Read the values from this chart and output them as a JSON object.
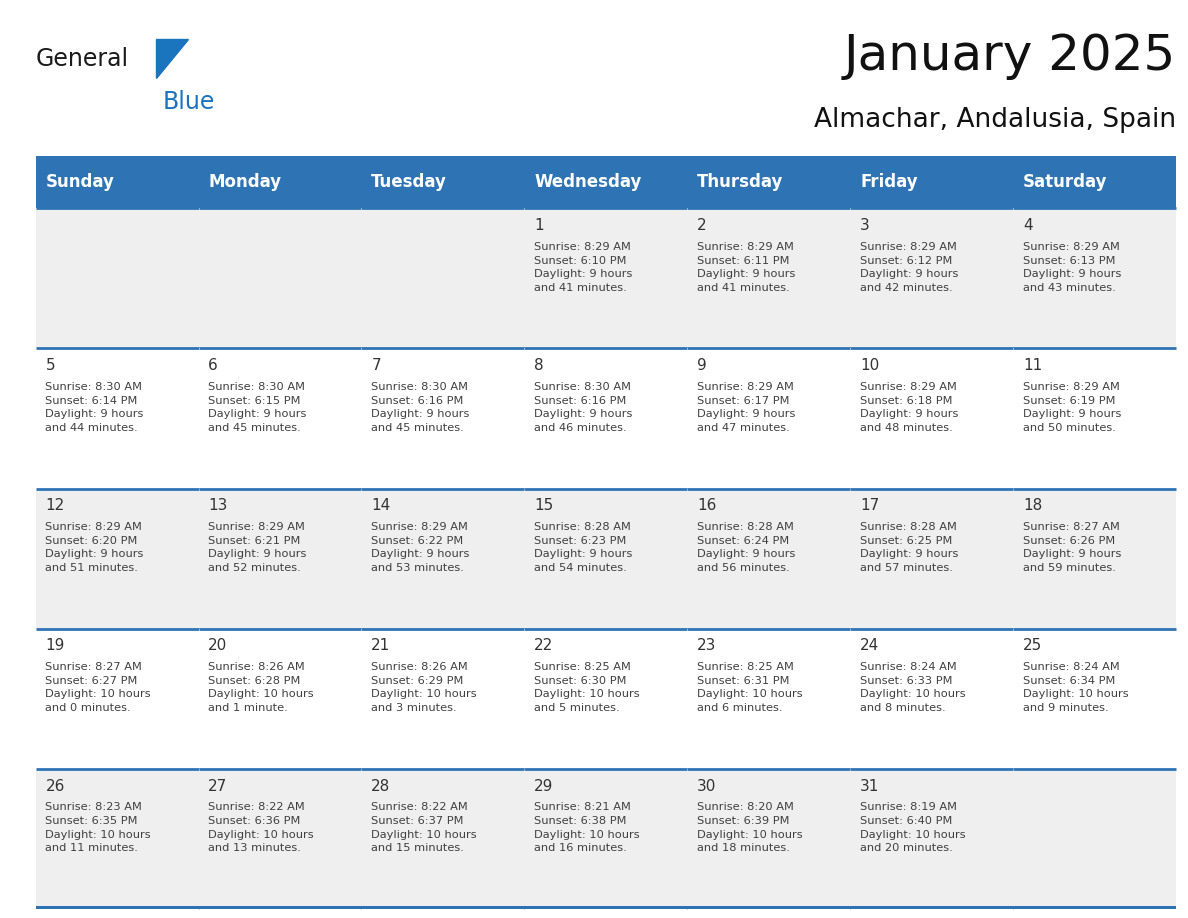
{
  "title": "January 2025",
  "subtitle": "Almachar, Andalusia, Spain",
  "days_of_week": [
    "Sunday",
    "Monday",
    "Tuesday",
    "Wednesday",
    "Thursday",
    "Friday",
    "Saturday"
  ],
  "header_bg": "#2E74B5",
  "header_text_color": "#FFFFFF",
  "cell_bg_odd": "#EFEFEF",
  "cell_bg_even": "#FFFFFF",
  "border_color": "#2E74B5",
  "separator_color": "#AAAAAA",
  "text_color": "#404040",
  "day_num_color": "#333333",
  "calendar_data": [
    [
      {
        "day": "",
        "info": ""
      },
      {
        "day": "",
        "info": ""
      },
      {
        "day": "",
        "info": ""
      },
      {
        "day": "1",
        "info": "Sunrise: 8:29 AM\nSunset: 6:10 PM\nDaylight: 9 hours\nand 41 minutes."
      },
      {
        "day": "2",
        "info": "Sunrise: 8:29 AM\nSunset: 6:11 PM\nDaylight: 9 hours\nand 41 minutes."
      },
      {
        "day": "3",
        "info": "Sunrise: 8:29 AM\nSunset: 6:12 PM\nDaylight: 9 hours\nand 42 minutes."
      },
      {
        "day": "4",
        "info": "Sunrise: 8:29 AM\nSunset: 6:13 PM\nDaylight: 9 hours\nand 43 minutes."
      }
    ],
    [
      {
        "day": "5",
        "info": "Sunrise: 8:30 AM\nSunset: 6:14 PM\nDaylight: 9 hours\nand 44 minutes."
      },
      {
        "day": "6",
        "info": "Sunrise: 8:30 AM\nSunset: 6:15 PM\nDaylight: 9 hours\nand 45 minutes."
      },
      {
        "day": "7",
        "info": "Sunrise: 8:30 AM\nSunset: 6:16 PM\nDaylight: 9 hours\nand 45 minutes."
      },
      {
        "day": "8",
        "info": "Sunrise: 8:30 AM\nSunset: 6:16 PM\nDaylight: 9 hours\nand 46 minutes."
      },
      {
        "day": "9",
        "info": "Sunrise: 8:29 AM\nSunset: 6:17 PM\nDaylight: 9 hours\nand 47 minutes."
      },
      {
        "day": "10",
        "info": "Sunrise: 8:29 AM\nSunset: 6:18 PM\nDaylight: 9 hours\nand 48 minutes."
      },
      {
        "day": "11",
        "info": "Sunrise: 8:29 AM\nSunset: 6:19 PM\nDaylight: 9 hours\nand 50 minutes."
      }
    ],
    [
      {
        "day": "12",
        "info": "Sunrise: 8:29 AM\nSunset: 6:20 PM\nDaylight: 9 hours\nand 51 minutes."
      },
      {
        "day": "13",
        "info": "Sunrise: 8:29 AM\nSunset: 6:21 PM\nDaylight: 9 hours\nand 52 minutes."
      },
      {
        "day": "14",
        "info": "Sunrise: 8:29 AM\nSunset: 6:22 PM\nDaylight: 9 hours\nand 53 minutes."
      },
      {
        "day": "15",
        "info": "Sunrise: 8:28 AM\nSunset: 6:23 PM\nDaylight: 9 hours\nand 54 minutes."
      },
      {
        "day": "16",
        "info": "Sunrise: 8:28 AM\nSunset: 6:24 PM\nDaylight: 9 hours\nand 56 minutes."
      },
      {
        "day": "17",
        "info": "Sunrise: 8:28 AM\nSunset: 6:25 PM\nDaylight: 9 hours\nand 57 minutes."
      },
      {
        "day": "18",
        "info": "Sunrise: 8:27 AM\nSunset: 6:26 PM\nDaylight: 9 hours\nand 59 minutes."
      }
    ],
    [
      {
        "day": "19",
        "info": "Sunrise: 8:27 AM\nSunset: 6:27 PM\nDaylight: 10 hours\nand 0 minutes."
      },
      {
        "day": "20",
        "info": "Sunrise: 8:26 AM\nSunset: 6:28 PM\nDaylight: 10 hours\nand 1 minute."
      },
      {
        "day": "21",
        "info": "Sunrise: 8:26 AM\nSunset: 6:29 PM\nDaylight: 10 hours\nand 3 minutes."
      },
      {
        "day": "22",
        "info": "Sunrise: 8:25 AM\nSunset: 6:30 PM\nDaylight: 10 hours\nand 5 minutes."
      },
      {
        "day": "23",
        "info": "Sunrise: 8:25 AM\nSunset: 6:31 PM\nDaylight: 10 hours\nand 6 minutes."
      },
      {
        "day": "24",
        "info": "Sunrise: 8:24 AM\nSunset: 6:33 PM\nDaylight: 10 hours\nand 8 minutes."
      },
      {
        "day": "25",
        "info": "Sunrise: 8:24 AM\nSunset: 6:34 PM\nDaylight: 10 hours\nand 9 minutes."
      }
    ],
    [
      {
        "day": "26",
        "info": "Sunrise: 8:23 AM\nSunset: 6:35 PM\nDaylight: 10 hours\nand 11 minutes."
      },
      {
        "day": "27",
        "info": "Sunrise: 8:22 AM\nSunset: 6:36 PM\nDaylight: 10 hours\nand 13 minutes."
      },
      {
        "day": "28",
        "info": "Sunrise: 8:22 AM\nSunset: 6:37 PM\nDaylight: 10 hours\nand 15 minutes."
      },
      {
        "day": "29",
        "info": "Sunrise: 8:21 AM\nSunset: 6:38 PM\nDaylight: 10 hours\nand 16 minutes."
      },
      {
        "day": "30",
        "info": "Sunrise: 8:20 AM\nSunset: 6:39 PM\nDaylight: 10 hours\nand 18 minutes."
      },
      {
        "day": "31",
        "info": "Sunrise: 8:19 AM\nSunset: 6:40 PM\nDaylight: 10 hours\nand 20 minutes."
      },
      {
        "day": "",
        "info": ""
      }
    ]
  ],
  "logo_general_color": "#1a1a1a",
  "logo_blue_color": "#1B74BE",
  "figsize": [
    11.88,
    9.18
  ],
  "dpi": 100
}
